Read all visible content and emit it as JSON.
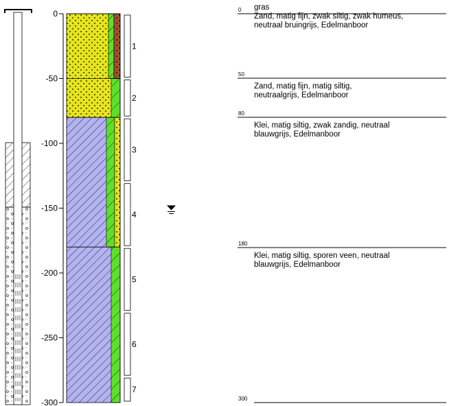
{
  "depth_axis": {
    "ticks": [
      {
        "value": 0,
        "label": "0"
      },
      {
        "value": -50,
        "label": "-50"
      },
      {
        "value": -100,
        "label": "-100"
      },
      {
        "value": -150,
        "label": "-150"
      },
      {
        "value": -200,
        "label": "-200"
      },
      {
        "value": -250,
        "label": "-250"
      },
      {
        "value": -300,
        "label": "-300"
      }
    ],
    "range_cm": [
      0,
      300
    ]
  },
  "groundwater_symbol": "groundwater-level-icon",
  "groundwater_depth_cm": 150,
  "samples": [
    {
      "label": "1",
      "top": 0,
      "bottom": 50
    },
    {
      "label": "2",
      "top": 50,
      "bottom": 80
    },
    {
      "label": "3",
      "top": 80,
      "bottom": 130
    },
    {
      "label": "4",
      "top": 130,
      "bottom": 180
    },
    {
      "label": "5",
      "top": 180,
      "bottom": 230
    },
    {
      "label": "6",
      "top": 230,
      "bottom": 280
    },
    {
      "label": "7",
      "top": 280,
      "bottom": 300
    }
  ],
  "layers": [
    {
      "top_label": "0",
      "top": 0,
      "bottom": 50,
      "main": "sand",
      "description": [
        "gras",
        "Zand, matig fijn, zwak siltig, zwak humeus,",
        "neutraal  bruingrijs,  Edelmanboor"
      ]
    },
    {
      "top_label": "50",
      "top": 50,
      "bottom": 80,
      "main": "sand",
      "description": [
        "Zand, matig fijn, matig siltig,",
        "neutraalgrijs,  Edelmanboor"
      ]
    },
    {
      "top_label": "80",
      "top": 80,
      "bottom": 180,
      "main": "clay",
      "description": [
        "Klei, matig siltig, zwak zandig, neutraal",
        "blauwgrijs,  Edelmanboor"
      ]
    },
    {
      "top_label": "180",
      "top": 180,
      "bottom": 300,
      "main": "clay",
      "description": [
        "Klei, matig siltig, sporen veen, neutraal",
        "blauwgrijs,  Edelmanboor"
      ]
    }
  ],
  "end_label": "300",
  "colors": {
    "sand": "#e5e41d",
    "clay": "#b3b3f2",
    "green": "#5ee02a",
    "peat": "#a0522d",
    "black": "#000000"
  }
}
